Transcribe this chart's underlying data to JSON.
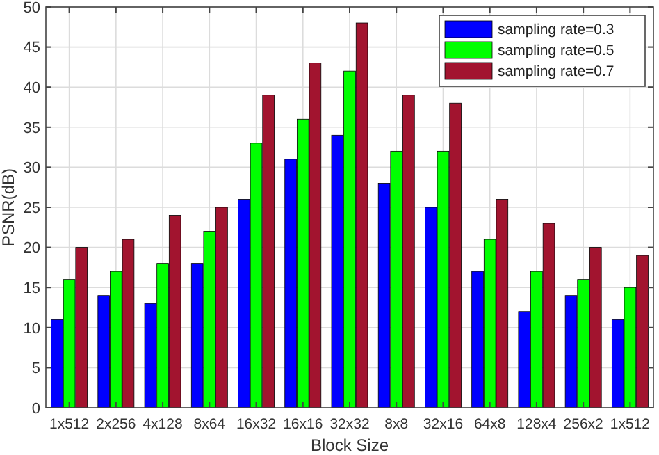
{
  "chart_data": {
    "type": "bar",
    "xlabel": "Block Size",
    "ylabel": "PSNR(dB)",
    "categories": [
      "1x512",
      "2x256",
      "4x128",
      "8x64",
      "16x32",
      "16x16",
      "32x32",
      "8x8",
      "32x16",
      "64x8",
      "128x4",
      "256x2",
      "1x512"
    ],
    "series": [
      {
        "name": "sampling rate=0.3",
        "color": "#0000ff",
        "values": [
          11,
          14,
          13,
          18,
          26,
          31,
          34,
          28,
          25,
          17,
          12,
          14,
          11
        ]
      },
      {
        "name": "sampling rate=0.5",
        "color": "#00ff00",
        "values": [
          16,
          17,
          18,
          22,
          33,
          36,
          42,
          32,
          32,
          21,
          17,
          16,
          15
        ]
      },
      {
        "name": "sampling rate=0.7",
        "color": "#a2142f",
        "values": [
          20,
          21,
          24,
          25,
          39,
          43,
          48,
          39,
          38,
          26,
          23,
          20,
          19
        ]
      }
    ],
    "ylim": [
      0,
      50
    ],
    "yticks": [
      0,
      5,
      10,
      15,
      20,
      25,
      30,
      35,
      40,
      45,
      50
    ],
    "grid": true,
    "legend": "top right"
  }
}
